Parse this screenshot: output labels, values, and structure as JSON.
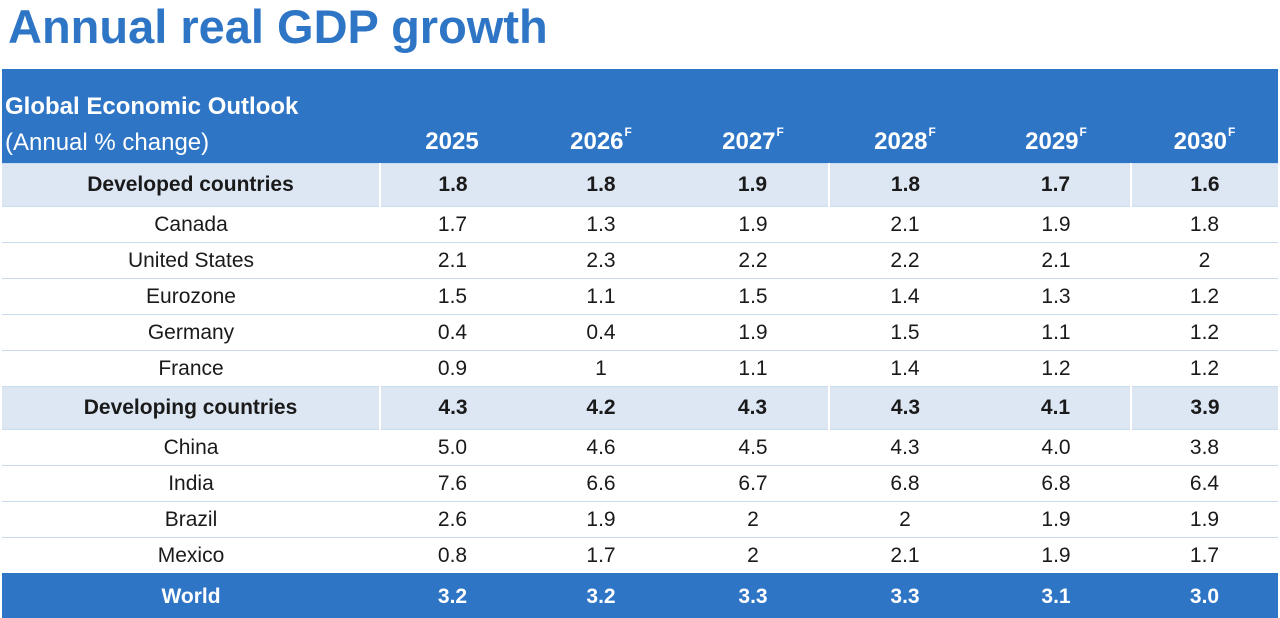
{
  "title": "Annual real GDP growth",
  "chart_data": {
    "type": "table",
    "header": {
      "label_main": "Global Economic Outlook",
      "label_sub": "(Annual % change)",
      "years": [
        {
          "year": "2025",
          "sup": ""
        },
        {
          "year": "2026",
          "sup": "F"
        },
        {
          "year": "2027",
          "sup": "F"
        },
        {
          "year": "2028",
          "sup": "F"
        },
        {
          "year": "2029",
          "sup": "F"
        },
        {
          "year": "2030",
          "sup": "F"
        }
      ]
    },
    "rows": [
      {
        "kind": "group",
        "name": "Developed countries",
        "values": [
          "1.8",
          "1.8",
          "1.9",
          "1.8",
          "1.7",
          "1.6"
        ]
      },
      {
        "kind": "row",
        "name": "Canada",
        "values": [
          "1.7",
          "1.3",
          "1.9",
          "2.1",
          "1.9",
          "1.8"
        ]
      },
      {
        "kind": "row",
        "name": "United States",
        "values": [
          "2.1",
          "2.3",
          "2.2",
          "2.2",
          "2.1",
          "2"
        ]
      },
      {
        "kind": "row",
        "name": "Eurozone",
        "values": [
          "1.5",
          "1.1",
          "1.5",
          "1.4",
          "1.3",
          "1.2"
        ]
      },
      {
        "kind": "row",
        "name": "Germany",
        "values": [
          "0.4",
          "0.4",
          "1.9",
          "1.5",
          "1.1",
          "1.2"
        ]
      },
      {
        "kind": "row",
        "name": "France",
        "values": [
          "0.9",
          "1",
          "1.1",
          "1.4",
          "1.2",
          "1.2"
        ]
      },
      {
        "kind": "group",
        "name": "Developing countries",
        "values": [
          "4.3",
          "4.2",
          "4.3",
          "4.3",
          "4.1",
          "3.9"
        ]
      },
      {
        "kind": "row",
        "name": "China",
        "values": [
          "5.0",
          "4.6",
          "4.5",
          "4.3",
          "4.0",
          "3.8"
        ]
      },
      {
        "kind": "row",
        "name": "India",
        "values": [
          "7.6",
          "6.6",
          "6.7",
          "6.8",
          "6.8",
          "6.4"
        ]
      },
      {
        "kind": "row",
        "name": "Brazil",
        "values": [
          "2.6",
          "1.9",
          "2",
          "2",
          "1.9",
          "1.9"
        ]
      },
      {
        "kind": "row",
        "name": "Mexico",
        "values": [
          "0.8",
          "1.7",
          "2",
          "2.1",
          "1.9",
          "1.7"
        ]
      },
      {
        "kind": "world",
        "name": "World",
        "values": [
          "3.2",
          "3.2",
          "3.3",
          "3.3",
          "3.1",
          "3.0"
        ]
      }
    ]
  }
}
